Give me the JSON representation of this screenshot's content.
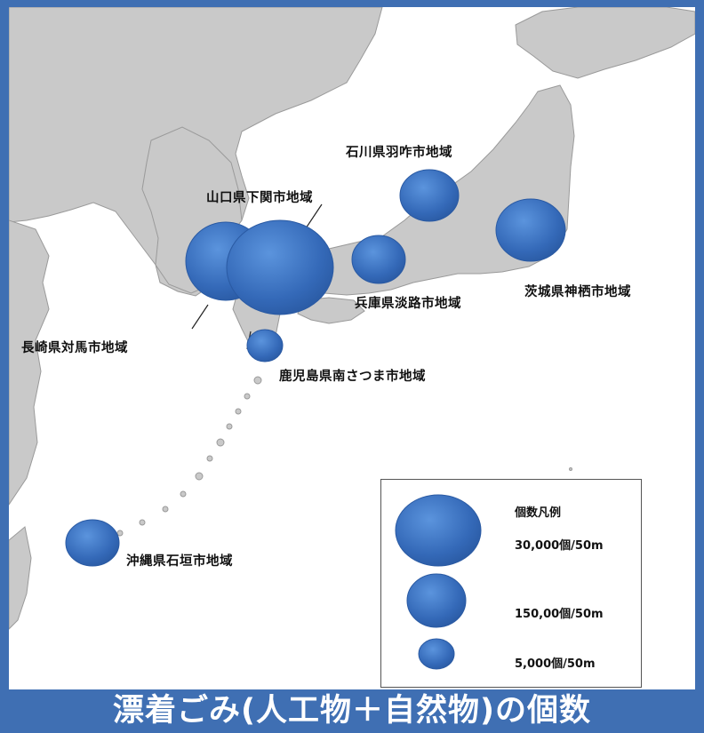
{
  "title": "漂着ごみ(人工物＋自然物)の個数",
  "regions": [
    {
      "id": "ishikawa",
      "label": "石川県羽咋市地域"
    },
    {
      "id": "shimonoseki",
      "label": "山口県下関市地域"
    },
    {
      "id": "ibaraki",
      "label": "茨城県神栖市地域"
    },
    {
      "id": "awaji",
      "label": "兵庫県淡路市地域"
    },
    {
      "id": "tsushima",
      "label": "長崎県対馬市地域"
    },
    {
      "id": "minamisatsuma",
      "label": "鹿児島県南さつま市地域"
    },
    {
      "id": "ishigaki",
      "label": "沖縄県石垣市地域"
    }
  ],
  "legend": {
    "title": "個数凡例",
    "items": [
      {
        "label": "30,000個/50m"
      },
      {
        "label": "150,00個/50m"
      },
      {
        "label": "5,000個/50m"
      }
    ]
  },
  "colors": {
    "bubble": "#3b73c4",
    "land": "#c9c9c9",
    "frame": "#3f6fb3"
  }
}
